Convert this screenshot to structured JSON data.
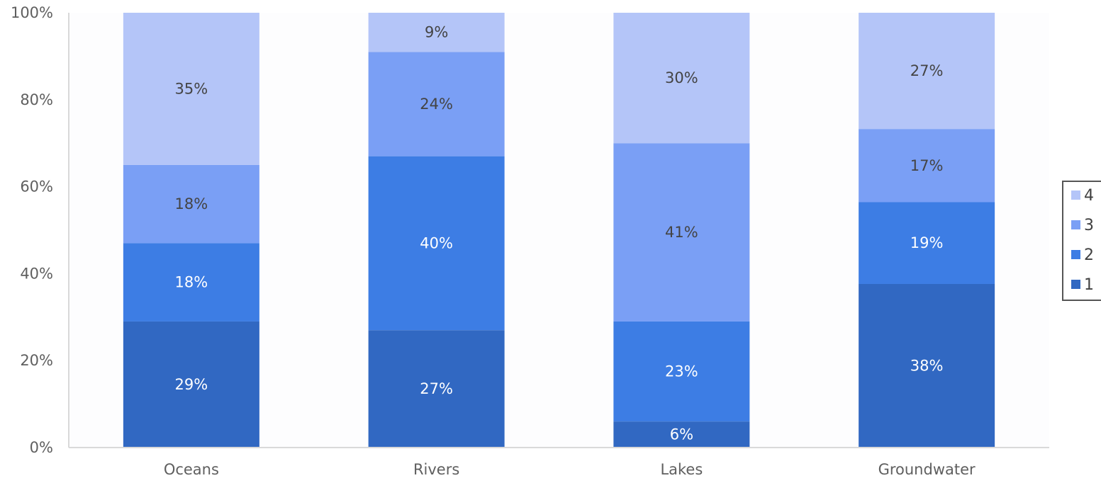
{
  "chart_data": {
    "type": "bar",
    "stacked": true,
    "percent_stacked": true,
    "categories": [
      "Oceans",
      "Rivers",
      "Lakes",
      "Groundwater"
    ],
    "series": [
      {
        "name": "1",
        "values": [
          29,
          27,
          6,
          38
        ],
        "labels": [
          "29%",
          "27%",
          "6%",
          "38%"
        ],
        "color": "#3168c2"
      },
      {
        "name": "2",
        "values": [
          18,
          40,
          23,
          19
        ],
        "labels": [
          "18%",
          "40%",
          "23%",
          "19%"
        ],
        "color": "#3d7de4"
      },
      {
        "name": "3",
        "values": [
          18,
          24,
          41,
          17
        ],
        "labels": [
          "18%",
          "24%",
          "41%",
          "17%"
        ],
        "color": "#7a9ff5"
      },
      {
        "name": "4",
        "values": [
          35,
          9,
          30,
          27
        ],
        "labels": [
          "35%",
          "9%",
          "30%",
          "27%"
        ],
        "color": "#b4c5f8"
      }
    ],
    "y_ticks": [
      "0%",
      "20%",
      "40%",
      "60%",
      "80%",
      "100%"
    ],
    "ylim": [
      0,
      100
    ],
    "grid": false,
    "legend_position": "right",
    "legend_order": [
      "4",
      "3",
      "2",
      "1"
    ],
    "label_colors": {
      "dark": "#ffffff",
      "light": "#444444"
    }
  }
}
